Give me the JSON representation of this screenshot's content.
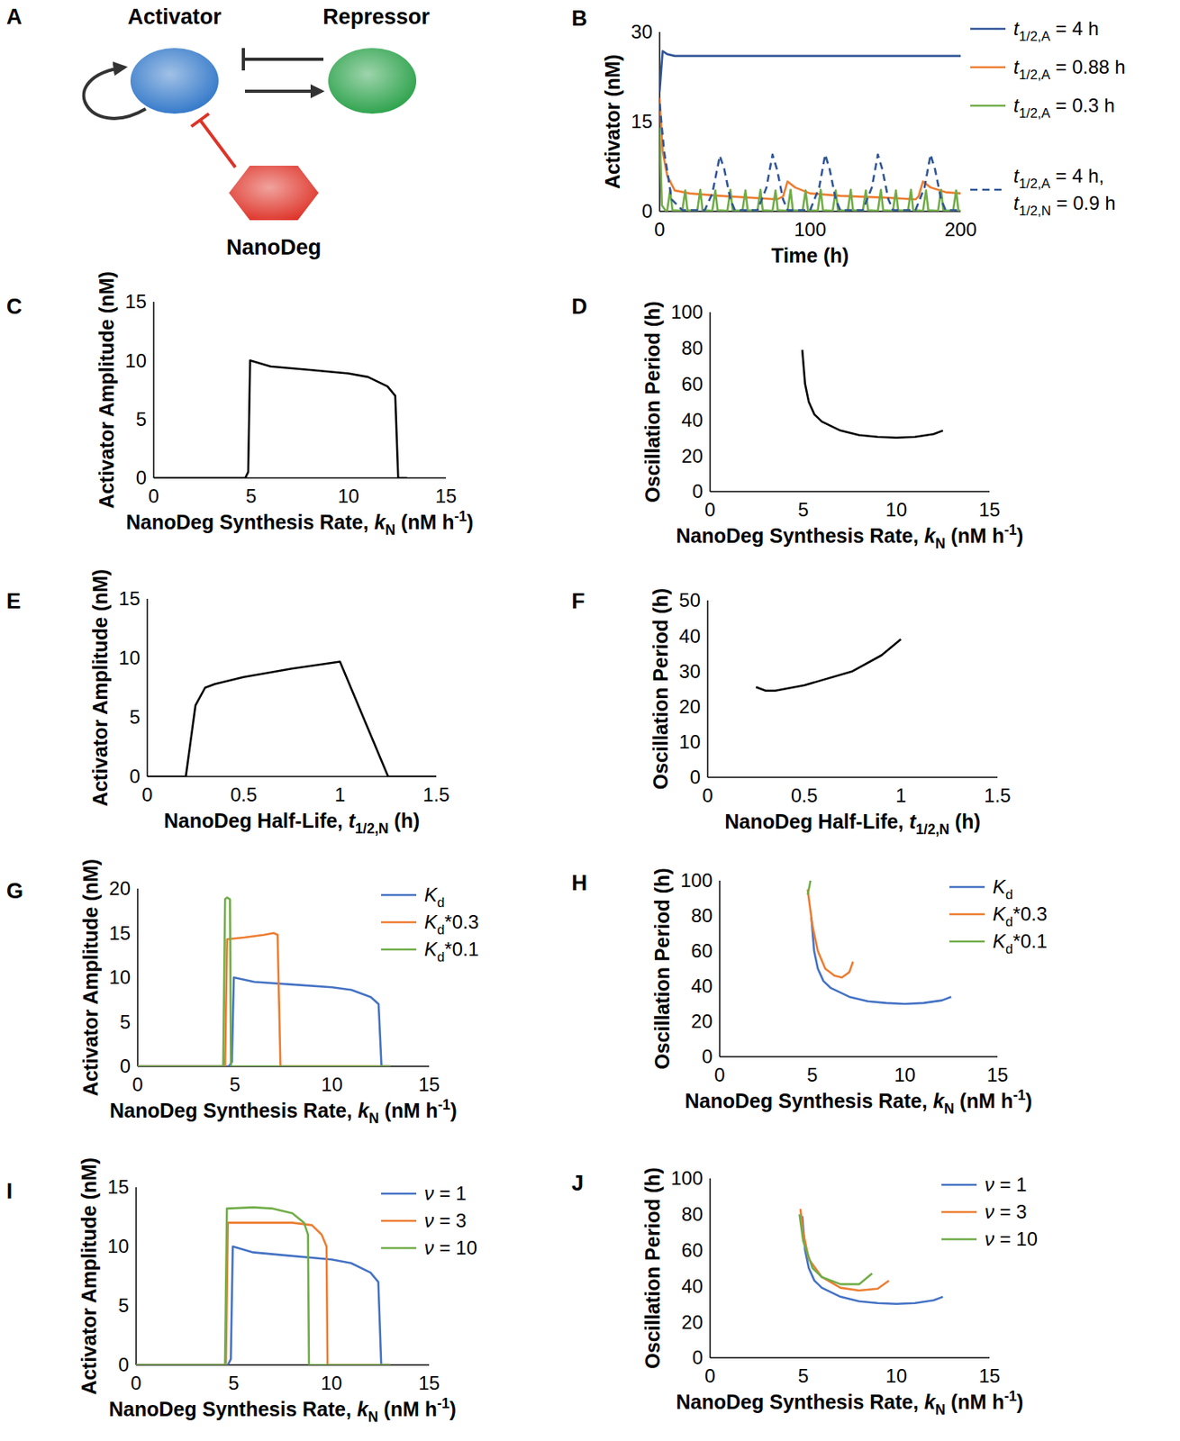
{
  "diagram": {
    "panel": "A",
    "nodes": [
      {
        "label": "Activator",
        "color": "#2e75c8"
      },
      {
        "label": "Repressor",
        "color": "#27a047"
      },
      {
        "label": "NanoDeg",
        "color": "#de3328"
      }
    ]
  },
  "chart_data": [
    {
      "panel": "B",
      "type": "line",
      "xlabel": "Time (h)",
      "ylabel": "Activator (nM)",
      "xlim": [
        0,
        200
      ],
      "xticks": [
        0,
        100,
        200
      ],
      "ylim": [
        0,
        30
      ],
      "yticks": [
        0,
        15,
        30
      ],
      "grid": false,
      "legend": "right",
      "series": [
        {
          "name": "t1/2,A = 4 h",
          "color": "#2f5597",
          "line_style": "solid",
          "x": [
            0,
            2,
            5,
            10,
            200
          ],
          "values": [
            20,
            26.8,
            26.3,
            26,
            26
          ]
        },
        {
          "name": "t1/2,A = 0.88 h",
          "color": "#ed7d31",
          "line_style": "solid",
          "x": [
            0,
            2,
            5,
            10,
            20,
            40,
            60,
            78,
            82,
            85,
            90,
            100,
            120,
            150,
            170,
            172,
            175,
            180,
            190,
            200
          ],
          "values": [
            19,
            10,
            6,
            3.5,
            3,
            2.6,
            2.3,
            2,
            2.5,
            5,
            4,
            3,
            2.6,
            2.3,
            2,
            2.5,
            5,
            4,
            3.2,
            3
          ]
        },
        {
          "name": "t1/2,A = 0.3 h",
          "color": "#70ad47",
          "line_style": "solid",
          "x": [
            0,
            1.5,
            4,
            5,
            7,
            8.5,
            15,
            17,
            18.5,
            25,
            27,
            28.5,
            35,
            37,
            38.5,
            45,
            47,
            48.5,
            55,
            57,
            58.5,
            65,
            67,
            68.5,
            75,
            77,
            78.5,
            85,
            87,
            88.5,
            95,
            97,
            98.5,
            105,
            107,
            108.5,
            115,
            117,
            118.5,
            125,
            127,
            128.5,
            135,
            137,
            138.5,
            145,
            147,
            148.5,
            155,
            157,
            158.5,
            165,
            167,
            168.5,
            175,
            177,
            178.5,
            185,
            187,
            188.5,
            195,
            197,
            198.5,
            200
          ],
          "values": [
            14,
            1,
            0.1,
            0.1,
            3.6,
            0.2,
            0.1,
            3.5,
            0.2,
            0.1,
            3.6,
            0.2,
            0.1,
            3.5,
            0.2,
            0.1,
            3.6,
            0.2,
            0.1,
            3.5,
            0.2,
            0.1,
            3.6,
            0.2,
            0.1,
            3.5,
            0.2,
            0.1,
            3.6,
            0.2,
            0.1,
            3.5,
            0.2,
            0.1,
            3.6,
            0.2,
            0.1,
            3.5,
            0.2,
            0.1,
            3.6,
            0.2,
            0.1,
            3.5,
            0.2,
            0.1,
            3.6,
            0.2,
            0.1,
            3.5,
            0.2,
            0.1,
            3.6,
            0.2,
            0.1,
            3.5,
            0.2,
            0.1,
            3.6,
            0.2,
            0.1,
            3.5,
            0.2,
            0.1
          ]
        },
        {
          "name": "t1/2,A = 4 h, t1/2,N = 0.9 h",
          "color": "#2f5597",
          "line_style": "dashed",
          "x": [
            0,
            3,
            8,
            15,
            30,
            35,
            40,
            43,
            47,
            50,
            65,
            71,
            75,
            78,
            82,
            85,
            100,
            106,
            110,
            113,
            117,
            120,
            135,
            141,
            145,
            148,
            152,
            155,
            170,
            176,
            180,
            183,
            187,
            190,
            200
          ],
          "values": [
            18,
            10,
            2,
            0.2,
            0.2,
            3,
            9.3,
            7,
            2,
            0.2,
            0.2,
            4,
            9.5,
            7,
            2,
            0.2,
            0.2,
            4,
            9.5,
            7,
            2,
            0.2,
            0.2,
            4,
            9.5,
            7,
            2,
            0.2,
            0.2,
            4,
            9.5,
            7,
            2,
            0.2,
            0.2
          ]
        }
      ]
    },
    {
      "panel": "C",
      "type": "line",
      "xlabel": "NanoDeg Synthesis Rate, kN (nM h-1)",
      "ylabel": "Activator Amplitude (nM)",
      "xlim": [
        0,
        15
      ],
      "xticks": [
        0,
        5,
        10,
        15
      ],
      "ylim": [
        0,
        15
      ],
      "yticks": [
        0,
        5,
        10,
        15
      ],
      "grid": false,
      "series": [
        {
          "color": "#000000",
          "line_style": "solid",
          "x": [
            0,
            4.7,
            4.85,
            4.95,
            6,
            8,
            10,
            11,
            12,
            12.4,
            12.55,
            13
          ],
          "values": [
            0,
            0,
            0.5,
            10,
            9.5,
            9.2,
            8.9,
            8.6,
            7.8,
            7,
            0,
            0
          ]
        }
      ]
    },
    {
      "panel": "D",
      "type": "line",
      "xlabel": "NanoDeg Synthesis Rate, kN (nM h-1)",
      "ylabel": "Oscillation Period (h)",
      "xlim": [
        0,
        15
      ],
      "xticks": [
        0,
        5,
        10,
        15
      ],
      "ylim": [
        0,
        100
      ],
      "yticks": [
        0,
        20,
        40,
        60,
        80,
        100
      ],
      "grid": false,
      "series": [
        {
          "color": "#000000",
          "line_style": "solid",
          "x": [
            4.95,
            5.1,
            5.3,
            5.6,
            6,
            7,
            8,
            9,
            10,
            11,
            12,
            12.5
          ],
          "values": [
            79,
            60,
            50,
            43,
            39,
            34,
            31.5,
            30.5,
            30,
            30.5,
            32,
            34
          ]
        }
      ]
    },
    {
      "panel": "E",
      "type": "line",
      "xlabel": "NanoDeg Half-Life, t1/2,N (h)",
      "ylabel": "Activator Amplitude (nM)",
      "xlim": [
        0,
        1.5
      ],
      "xticks": [
        0,
        0.5,
        1,
        1.5
      ],
      "ylim": [
        0,
        15
      ],
      "yticks": [
        0,
        5,
        10,
        15
      ],
      "grid": false,
      "series": [
        {
          "color": "#000000",
          "line_style": "solid",
          "x": [
            0,
            0.2,
            0.25,
            0.3,
            0.35,
            0.5,
            0.75,
            1,
            1.25,
            1.5
          ],
          "values": [
            0,
            0,
            6,
            7.5,
            7.8,
            8.4,
            9.1,
            9.7,
            0,
            0
          ]
        }
      ]
    },
    {
      "panel": "F",
      "type": "line",
      "xlabel": "NanoDeg Half-Life, t1/2,N (h)",
      "ylabel": "Oscillation Period (h)",
      "xlim": [
        0,
        1.5
      ],
      "xticks": [
        0,
        0.5,
        1,
        1.5
      ],
      "ylim": [
        0,
        50
      ],
      "yticks": [
        0,
        10,
        20,
        30,
        40,
        50
      ],
      "grid": false,
      "series": [
        {
          "color": "#000000",
          "line_style": "solid",
          "x": [
            0.25,
            0.3,
            0.35,
            0.5,
            0.75,
            0.9,
            1
          ],
          "values": [
            25.5,
            24.5,
            24.5,
            26,
            30,
            34.5,
            39
          ]
        }
      ]
    },
    {
      "panel": "G",
      "type": "line",
      "xlabel": "NanoDeg Synthesis Rate, kN (nM h-1)",
      "ylabel": "Activator Amplitude (nM)",
      "xlim": [
        0,
        15
      ],
      "xticks": [
        0,
        5,
        10,
        15
      ],
      "ylim": [
        0,
        20
      ],
      "yticks": [
        0,
        5,
        10,
        15,
        20
      ],
      "grid": false,
      "legend": "upper right",
      "series": [
        {
          "name": "Kd",
          "color": "#4472c4",
          "line_style": "solid",
          "x": [
            0,
            4.7,
            4.85,
            4.95,
            6,
            8,
            10,
            11,
            12,
            12.4,
            12.55,
            13
          ],
          "values": [
            0,
            0,
            0.5,
            10,
            9.5,
            9.2,
            8.9,
            8.6,
            7.8,
            7,
            0,
            0
          ]
        },
        {
          "name": "Kd*0.3",
          "color": "#ed7d31",
          "line_style": "solid",
          "x": [
            0,
            4.5,
            4.6,
            5.5,
            6.5,
            7,
            7.2,
            7.35,
            13
          ],
          "values": [
            0,
            0,
            14.3,
            14.5,
            14.8,
            15,
            14.8,
            0,
            0
          ]
        },
        {
          "name": "Kd*0.1",
          "color": "#70ad47",
          "line_style": "solid",
          "x": [
            0,
            4.4,
            4.5,
            4.6,
            4.75,
            4.8,
            13
          ],
          "values": [
            0,
            0,
            18.8,
            19,
            18.8,
            0,
            0
          ]
        }
      ]
    },
    {
      "panel": "H",
      "type": "line",
      "xlabel": "NanoDeg Synthesis Rate, kN (nM h-1)",
      "ylabel": "Oscillation Period (h)",
      "xlim": [
        0,
        15
      ],
      "xticks": [
        0,
        5,
        10,
        15
      ],
      "ylim": [
        0,
        100
      ],
      "yticks": [
        0,
        20,
        40,
        60,
        80,
        100
      ],
      "grid": false,
      "legend": "upper right",
      "series": [
        {
          "name": "Kd",
          "color": "#4472c4",
          "line_style": "solid",
          "x": [
            4.95,
            5.1,
            5.3,
            5.6,
            6,
            7,
            8,
            9,
            10,
            11,
            12,
            12.5
          ],
          "values": [
            79,
            60,
            50,
            43,
            39,
            34,
            31.5,
            30.5,
            30,
            30.5,
            32,
            34
          ]
        },
        {
          "name": "Kd*0.3",
          "color": "#ed7d31",
          "line_style": "solid",
          "x": [
            4.75,
            5,
            5.3,
            5.7,
            6.2,
            6.6,
            7,
            7.2
          ],
          "values": [
            95,
            75,
            60,
            50,
            46,
            45,
            48,
            54
          ]
        },
        {
          "name": "Kd*0.1",
          "color": "#70ad47",
          "line_style": "solid",
          "x": [
            4.75,
            4.85,
            4.9
          ],
          "values": [
            92,
            97,
            100
          ]
        }
      ]
    },
    {
      "panel": "I",
      "type": "line",
      "xlabel": "NanoDeg Synthesis Rate, kN (nM h-1)",
      "ylabel": "Activator Amplitude (nM)",
      "xlim": [
        0,
        15
      ],
      "xticks": [
        0,
        5,
        10,
        15
      ],
      "ylim": [
        0,
        15
      ],
      "yticks": [
        0,
        5,
        10,
        15
      ],
      "grid": false,
      "legend": "upper right",
      "series": [
        {
          "name": "ν = 1",
          "color": "#4472c4",
          "line_style": "solid",
          "x": [
            0,
            4.7,
            4.85,
            4.95,
            6,
            8,
            10,
            11,
            12,
            12.4,
            12.55,
            13
          ],
          "values": [
            0,
            0,
            0.5,
            10,
            9.5,
            9.2,
            8.9,
            8.6,
            7.8,
            7,
            0,
            0
          ]
        },
        {
          "name": "ν = 3",
          "color": "#ed7d31",
          "line_style": "solid",
          "x": [
            0,
            4.6,
            4.7,
            6,
            8,
            9,
            9.5,
            9.75,
            9.8,
            13
          ],
          "values": [
            0,
            0,
            12,
            12,
            12,
            11.8,
            11,
            10,
            0,
            0
          ]
        },
        {
          "name": "ν = 10",
          "color": "#70ad47",
          "line_style": "solid",
          "x": [
            0,
            4.55,
            4.65,
            6,
            7,
            8,
            8.6,
            8.8,
            8.85,
            13
          ],
          "values": [
            0,
            0,
            13.2,
            13.3,
            13.2,
            12.8,
            12,
            11,
            0,
            0
          ]
        }
      ]
    },
    {
      "panel": "J",
      "type": "line",
      "xlabel": "NanoDeg Synthesis Rate, kN (nM h-1)",
      "ylabel": "Oscillation Period (h)",
      "xlim": [
        0,
        15
      ],
      "xticks": [
        0,
        5,
        10,
        15
      ],
      "ylim": [
        0,
        100
      ],
      "yticks": [
        0,
        20,
        40,
        60,
        80,
        100
      ],
      "grid": false,
      "legend": "upper right",
      "series": [
        {
          "name": "ν = 1",
          "color": "#4472c4",
          "line_style": "solid",
          "x": [
            4.95,
            5.1,
            5.3,
            5.6,
            6,
            7,
            8,
            9,
            10,
            11,
            12,
            12.5
          ],
          "values": [
            79,
            60,
            50,
            43,
            39,
            34,
            31.5,
            30.5,
            30,
            30.5,
            32,
            34
          ]
        },
        {
          "name": "ν = 3",
          "color": "#ed7d31",
          "line_style": "solid",
          "x": [
            4.85,
            5,
            5.3,
            6,
            7,
            8,
            9,
            9.6
          ],
          "values": [
            83,
            70,
            55,
            45,
            39,
            37.5,
            38.5,
            43
          ]
        },
        {
          "name": "ν = 10",
          "color": "#70ad47",
          "line_style": "solid",
          "x": [
            4.8,
            5,
            5.5,
            6,
            7,
            8,
            8.7
          ],
          "values": [
            80,
            65,
            50,
            45,
            41,
            41,
            47
          ]
        }
      ]
    }
  ]
}
